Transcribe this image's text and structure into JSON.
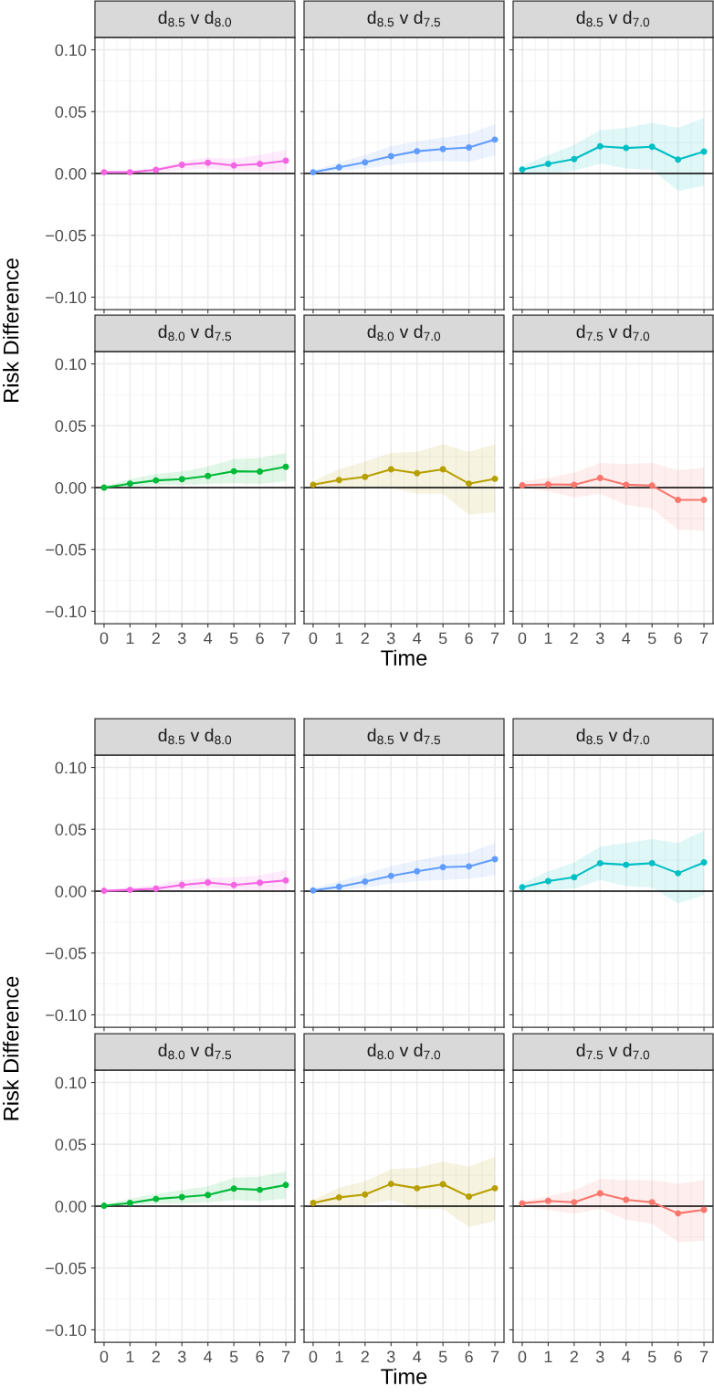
{
  "chart_data": [
    {
      "type": "line",
      "title": "d$_{8.5}$ v d$_{8.0}$",
      "ylabel": "Risk Difference",
      "x": [
        0,
        1,
        2,
        3,
        4,
        5,
        6,
        7
      ],
      "xlim": [
        -0.35,
        7.35
      ],
      "ylim": [
        -0.11,
        0.11
      ],
      "xticks": [
        0,
        1,
        2,
        3,
        4,
        5,
        6,
        7
      ],
      "yticks": [
        {
          "value": -0.1,
          "label": "−0.10"
        },
        {
          "value": -0.05,
          "label": "−0.05"
        },
        {
          "value": 0,
          "label": "0.00"
        },
        {
          "value": 0.05,
          "label": "0.05"
        },
        {
          "value": 0.1,
          "label": "0.10"
        }
      ],
      "tick_labels": "y",
      "grid": true,
      "marker": "circle",
      "ref_lines": [
        {
          "axis": "y",
          "value": 0,
          "color": "#000000"
        }
      ],
      "series": [
        {
          "color": "#f564e3",
          "values": [
            0.001,
            0.001,
            0.003,
            0.007,
            0.0087,
            0.0065,
            0.0077,
            0.0103
          ],
          "lower": [
            0,
            0,
            0.001,
            0.003,
            0.004,
            0.002,
            0.002,
            0.002
          ],
          "upper": [
            0.001,
            0.002,
            0.004,
            0.01,
            0.013,
            0.012,
            0.015,
            0.019
          ]
        }
      ]
    },
    {
      "type": "line",
      "title": "d$_{8.5}$ v d$_{7.5}$",
      "x": [
        0,
        1,
        2,
        3,
        4,
        5,
        6,
        7
      ],
      "xlim": [
        -0.35,
        7.35
      ],
      "ylim": [
        -0.11,
        0.11
      ],
      "xticks": [
        0,
        1,
        2,
        3,
        4,
        5,
        6,
        7
      ],
      "yticks": [
        -0.1,
        -0.05,
        0,
        0.05,
        0.1
      ],
      "tick_labels": false,
      "grid": true,
      "marker": "circle",
      "ref_lines": [
        {
          "axis": "y",
          "value": 0,
          "color": "#000000"
        }
      ],
      "series": [
        {
          "color": "#619cff",
          "values": [
            0.001,
            0.005,
            0.009,
            0.014,
            0.018,
            0.0197,
            0.021,
            0.0274
          ],
          "lower": [
            0,
            0.002,
            0.004,
            0.007,
            0.009,
            0.01,
            0.0095,
            0.0145
          ],
          "upper": [
            0.002,
            0.009,
            0.015,
            0.022,
            0.026,
            0.029,
            0.032,
            0.04
          ]
        }
      ]
    },
    {
      "type": "line",
      "title": "d$_{8.5}$ v d$_{7.0}$",
      "x": [
        0,
        1,
        2,
        3,
        4,
        5,
        6,
        7
      ],
      "xlim": [
        -0.35,
        7.35
      ],
      "ylim": [
        -0.11,
        0.11
      ],
      "xticks": [
        0,
        1,
        2,
        3,
        4,
        5,
        6,
        7
      ],
      "yticks": [
        -0.1,
        -0.05,
        0,
        0.05,
        0.1
      ],
      "tick_labels": false,
      "grid": true,
      "marker": "circle",
      "ref_lines": [
        {
          "axis": "y",
          "value": 0,
          "color": "#000000"
        }
      ],
      "series": [
        {
          "color": "#00bfc4",
          "values": [
            0.0032,
            0.0077,
            0.0116,
            0.022,
            0.0206,
            0.0216,
            0.0113,
            0.0177
          ],
          "lower": [
            0,
            0,
            0.002,
            0.008,
            0.004,
            0.003,
            -0.014,
            -0.01
          ],
          "upper": [
            0.006,
            0.015,
            0.023,
            0.035,
            0.037,
            0.041,
            0.037,
            0.045
          ]
        }
      ]
    },
    {
      "type": "line",
      "title": "d$_{8.0}$ v d$_{7.5}$",
      "x": [
        0,
        1,
        2,
        3,
        4,
        5,
        6,
        7
      ],
      "xlim": [
        -0.35,
        7.35
      ],
      "ylim": [
        -0.11,
        0.11
      ],
      "xticks": [
        0,
        1,
        2,
        3,
        4,
        5,
        6,
        7
      ],
      "yticks": [
        {
          "value": -0.1,
          "label": "−0.10"
        },
        {
          "value": -0.05,
          "label": "−0.05"
        },
        {
          "value": 0,
          "label": "0.00"
        },
        {
          "value": 0.05,
          "label": "0.05"
        },
        {
          "value": 0.1,
          "label": "0.10"
        }
      ],
      "grid": true,
      "marker": "circle",
      "ref_lines": [
        {
          "axis": "y",
          "value": 0,
          "color": "#000000"
        }
      ],
      "series": [
        {
          "color": "#00ba38",
          "values": [
            0,
            0.0032,
            0.0058,
            0.0068,
            0.0094,
            0.0132,
            0.0129,
            0.0168
          ],
          "lower": [
            0,
            0.001,
            0.002,
            0.002,
            0.003,
            0.0035,
            0.003,
            0.005
          ],
          "upper": [
            0.001,
            0.007,
            0.011,
            0.013,
            0.017,
            0.023,
            0.024,
            0.028
          ]
        }
      ]
    },
    {
      "type": "line",
      "title": "d$_{8.0}$ v d$_{7.0}$",
      "xlabel": "Time",
      "x": [
        0,
        1,
        2,
        3,
        4,
        5,
        6,
        7
      ],
      "xlim": [
        -0.35,
        7.35
      ],
      "ylim": [
        -0.11,
        0.11
      ],
      "xticks": [
        0,
        1,
        2,
        3,
        4,
        5,
        6,
        7
      ],
      "yticks": [
        -0.1,
        -0.05,
        0,
        0.05,
        0.1
      ],
      "tick_labels": "x",
      "grid": true,
      "marker": "circle",
      "ref_lines": [
        {
          "axis": "y",
          "value": 0,
          "color": "#000000"
        }
      ],
      "series": [
        {
          "color": "#b79f00",
          "values": [
            0.0023,
            0.0061,
            0.0087,
            0.0148,
            0.0116,
            0.0148,
            0.0032,
            0.0071
          ],
          "lower": [
            0,
            -0.001,
            -0.001,
            0,
            -0.005,
            -0.005,
            -0.022,
            -0.02
          ],
          "upper": [
            0.005,
            0.015,
            0.021,
            0.028,
            0.029,
            0.035,
            0.029,
            0.035
          ]
        }
      ]
    },
    {
      "type": "line",
      "title": "d$_{7.5}$ v d$_{7.0}$",
      "x": [
        0,
        1,
        2,
        3,
        4,
        5,
        6,
        7
      ],
      "xlim": [
        -0.35,
        7.35
      ],
      "ylim": [
        -0.11,
        0.11
      ],
      "xticks": [
        0,
        1,
        2,
        3,
        4,
        5,
        6,
        7
      ],
      "yticks": [
        -0.1,
        -0.05,
        0,
        0.05,
        0.1
      ],
      "tick_labels": "x",
      "grid": true,
      "marker": "circle",
      "ref_lines": [
        {
          "axis": "y",
          "value": 0,
          "color": "#000000"
        }
      ],
      "series": [
        {
          "color": "#f8766d",
          "values": [
            0.0019,
            0.0026,
            0.0023,
            0.0077,
            0.0023,
            0.0016,
            -0.01,
            -0.01
          ],
          "lower": [
            0,
            -0.003,
            -0.008,
            -0.005,
            -0.014,
            -0.017,
            -0.034,
            -0.035
          ],
          "upper": [
            0.005,
            0.008,
            0.012,
            0.02,
            0.019,
            0.02,
            0.014,
            0.016
          ]
        }
      ]
    },
    {
      "type": "line",
      "title": "d$_{8.5}$ v d$_{8.0}$",
      "ylabel": "Risk Difference",
      "x": [
        0,
        1,
        2,
        3,
        4,
        5,
        6,
        7
      ],
      "xlim": [
        -0.35,
        7.35
      ],
      "ylim": [
        -0.11,
        0.11
      ],
      "xticks": [
        0,
        1,
        2,
        3,
        4,
        5,
        6,
        7
      ],
      "yticks": [
        {
          "value": -0.1,
          "label": "−0.10"
        },
        {
          "value": -0.05,
          "label": "−0.05"
        },
        {
          "value": 0,
          "label": "0.00"
        },
        {
          "value": 0.05,
          "label": "0.05"
        },
        {
          "value": 0.1,
          "label": "0.10"
        }
      ],
      "tick_labels": "y",
      "grid": true,
      "marker": "circle",
      "ref_lines": [
        {
          "axis": "y",
          "value": 0,
          "color": "#000000"
        }
      ],
      "series": [
        {
          "color": "#f564e3",
          "values": [
            0.0003,
            0.001,
            0.002,
            0.005,
            0.007,
            0.005,
            0.0068,
            0.0087
          ],
          "lower": [
            0,
            0,
            0,
            0.001,
            0.003,
            0.001,
            0.001,
            0.001
          ],
          "upper": [
            0.001,
            0.003,
            0.005,
            0.009,
            0.011,
            0.011,
            0.013,
            0.017
          ]
        }
      ]
    },
    {
      "type": "line",
      "title": "d$_{8.5}$ v d$_{7.5}$",
      "x": [
        0,
        1,
        2,
        3,
        4,
        5,
        6,
        7
      ],
      "xlim": [
        -0.35,
        7.35
      ],
      "ylim": [
        -0.11,
        0.11
      ],
      "xticks": [
        0,
        1,
        2,
        3,
        4,
        5,
        6,
        7
      ],
      "yticks": [
        -0.1,
        -0.05,
        0,
        0.05,
        0.1
      ],
      "tick_labels": false,
      "grid": true,
      "marker": "circle",
      "ref_lines": [
        {
          "axis": "y",
          "value": 0,
          "color": "#000000"
        }
      ],
      "series": [
        {
          "color": "#619cff",
          "values": [
            0.0006,
            0.0035,
            0.0077,
            0.0123,
            0.0161,
            0.0194,
            0.02,
            0.0258
          ],
          "lower": [
            0,
            0.001,
            0.003,
            0.006,
            0.008,
            0.009,
            0.01,
            0.013
          ],
          "upper": [
            0.002,
            0.008,
            0.014,
            0.02,
            0.025,
            0.029,
            0.031,
            0.039
          ]
        }
      ]
    },
    {
      "type": "line",
      "title": "d$_{8.5}$ v d$_{7.0}$",
      "x": [
        0,
        1,
        2,
        3,
        4,
        5,
        6,
        7
      ],
      "xlim": [
        -0.35,
        7.35
      ],
      "ylim": [
        -0.11,
        0.11
      ],
      "xticks": [
        0,
        1,
        2,
        3,
        4,
        5,
        6,
        7
      ],
      "yticks": [
        -0.1,
        -0.05,
        0,
        0.05,
        0.1
      ],
      "tick_labels": false,
      "grid": true,
      "marker": "circle",
      "ref_lines": [
        {
          "axis": "y",
          "value": 0,
          "color": "#000000"
        }
      ],
      "series": [
        {
          "color": "#00bfc4",
          "values": [
            0.0032,
            0.0081,
            0.0113,
            0.0226,
            0.0213,
            0.0226,
            0.0145,
            0.0232
          ],
          "lower": [
            0,
            0.001,
            0.002,
            0.009,
            0.004,
            0.003,
            -0.01,
            -0.003
          ],
          "upper": [
            0.006,
            0.016,
            0.023,
            0.036,
            0.039,
            0.042,
            0.039,
            0.049
          ]
        }
      ]
    },
    {
      "type": "line",
      "title": "d$_{8.0}$ v d$_{7.5}$",
      "x": [
        0,
        1,
        2,
        3,
        4,
        5,
        6,
        7
      ],
      "xlim": [
        -0.35,
        7.35
      ],
      "ylim": [
        -0.11,
        0.11
      ],
      "xticks": [
        0,
        1,
        2,
        3,
        4,
        5,
        6,
        7
      ],
      "yticks": [
        {
          "value": -0.1,
          "label": "−0.10"
        },
        {
          "value": -0.05,
          "label": "−0.05"
        },
        {
          "value": 0,
          "label": "0.00"
        },
        {
          "value": 0.05,
          "label": "0.05"
        },
        {
          "value": 0.1,
          "label": "0.10"
        }
      ],
      "grid": true,
      "marker": "circle",
      "ref_lines": [
        {
          "axis": "y",
          "value": 0,
          "color": "#000000"
        }
      ],
      "series": [
        {
          "color": "#00ba38",
          "values": [
            0.0003,
            0.0026,
            0.0058,
            0.0074,
            0.009,
            0.0142,
            0.0132,
            0.0171
          ],
          "lower": [
            0,
            0.001,
            0.002,
            0.002,
            0.003,
            0.005,
            0.004,
            0.006
          ],
          "upper": [
            0.001,
            0.006,
            0.01,
            0.013,
            0.016,
            0.023,
            0.024,
            0.028
          ]
        }
      ]
    },
    {
      "type": "line",
      "title": "d$_{8.0}$ v d$_{7.0}$",
      "xlabel": "Time",
      "x": [
        0,
        1,
        2,
        3,
        4,
        5,
        6,
        7
      ],
      "xlim": [
        -0.35,
        7.35
      ],
      "ylim": [
        -0.11,
        0.11
      ],
      "xticks": [
        0,
        1,
        2,
        3,
        4,
        5,
        6,
        7
      ],
      "yticks": [
        -0.1,
        -0.05,
        0,
        0.05,
        0.1
      ],
      "tick_labels": "x",
      "grid": true,
      "marker": "circle",
      "ref_lines": [
        {
          "axis": "y",
          "value": 0,
          "color": "#000000"
        }
      ],
      "series": [
        {
          "color": "#b79f00",
          "values": [
            0.0026,
            0.0071,
            0.0094,
            0.018,
            0.0145,
            0.0177,
            0.0077,
            0.0145
          ],
          "lower": [
            0,
            0,
            0.001,
            0.005,
            -0.002,
            -0.002,
            -0.017,
            -0.012
          ],
          "upper": [
            0.005,
            0.015,
            0.02,
            0.03,
            0.031,
            0.036,
            0.032,
            0.04
          ]
        }
      ]
    },
    {
      "type": "line",
      "title": "d$_{7.5}$ v d$_{7.0}$",
      "x": [
        0,
        1,
        2,
        3,
        4,
        5,
        6,
        7
      ],
      "xlim": [
        -0.35,
        7.35
      ],
      "ylim": [
        -0.11,
        0.11
      ],
      "xticks": [
        0,
        1,
        2,
        3,
        4,
        5,
        6,
        7
      ],
      "yticks": [
        -0.1,
        -0.05,
        0,
        0.05,
        0.1
      ],
      "tick_labels": "x",
      "grid": true,
      "marker": "circle",
      "ref_lines": [
        {
          "axis": "y",
          "value": 0,
          "color": "#000000"
        }
      ],
      "series": [
        {
          "color": "#f8766d",
          "values": [
            0.0023,
            0.0042,
            0.0032,
            0.0103,
            0.0052,
            0.0032,
            -0.0058,
            -0.0029
          ],
          "lower": [
            0,
            -0.003,
            -0.006,
            -0.002,
            -0.011,
            -0.014,
            -0.029,
            -0.028
          ],
          "upper": [
            0.004,
            0.008,
            0.013,
            0.022,
            0.021,
            0.021,
            0.018,
            0.021
          ]
        }
      ]
    }
  ]
}
